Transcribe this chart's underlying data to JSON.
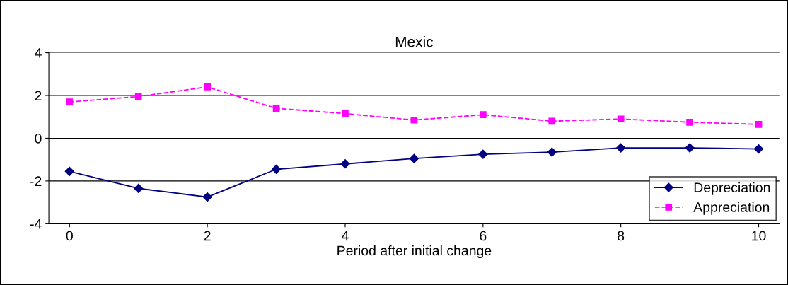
{
  "chart_data": {
    "type": "line",
    "title": "Mexic",
    "xlabel": "Period after initial change",
    "x": [
      0,
      1,
      2,
      3,
      4,
      5,
      6,
      7,
      8,
      9,
      10
    ],
    "series": [
      {
        "name": "Depreciation",
        "color": "#000080",
        "marker": "diamond",
        "line_style": "solid",
        "values": [
          -1.55,
          -2.35,
          -2.75,
          -1.45,
          -1.2,
          -0.95,
          -0.75,
          -0.65,
          -0.45,
          -0.45,
          -0.5
        ]
      },
      {
        "name": "Appreciation",
        "color": "#ff00ff",
        "marker": "square",
        "line_style": "dashed",
        "values": [
          1.7,
          1.95,
          2.4,
          1.4,
          1.15,
          0.85,
          1.1,
          0.8,
          0.9,
          0.75,
          0.65
        ]
      }
    ],
    "xlim": [
      -0.3,
      10.3
    ],
    "xticks": [
      0,
      2,
      4,
      6,
      8,
      10
    ],
    "ylim": [
      -4,
      4
    ],
    "yticks": [
      -4,
      -2,
      0,
      2,
      4
    ],
    "grid": "y",
    "legend": "bottom right"
  }
}
